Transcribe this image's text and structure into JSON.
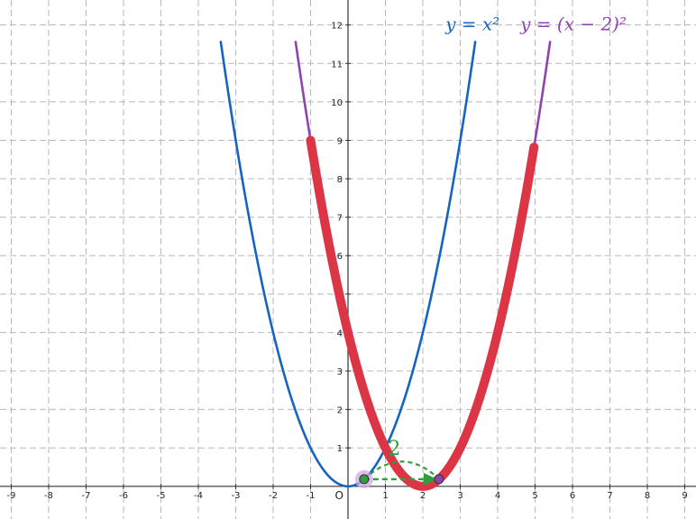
{
  "chart_data": {
    "type": "line",
    "x_ticks": [
      -9,
      -8,
      -7,
      -6,
      -5,
      -4,
      -3,
      -2,
      -1,
      1,
      2,
      3,
      4,
      5,
      6,
      7,
      8,
      9
    ],
    "y_ticks": [
      1,
      2,
      3,
      4,
      5,
      6,
      7,
      8,
      9,
      10,
      11,
      12
    ],
    "origin_label": "O",
    "xlim": [
      -9.3,
      9.3
    ],
    "ylim": [
      -0.85,
      12.65
    ],
    "grid": true,
    "series": [
      {
        "name": "y = x^2",
        "label_text": "y = x²",
        "color": "#1565C0",
        "x_range": [
          -3.4,
          3.4
        ],
        "formula": "x^2"
      },
      {
        "name": "y = (x − 2)^2",
        "label_text": "y = (x − 2)²",
        "color": "#8E44AD",
        "x_range": [
          -1.4,
          5.4
        ],
        "formula": "(x-2)^2"
      },
      {
        "name": "highlight",
        "color": "#DC3545",
        "x_range": [
          -1.0,
          4.97
        ],
        "formula": "(x-2)^2"
      }
    ],
    "points": [
      {
        "name": "point-on-y-equals-x-squared",
        "x": 0.43,
        "y": 0.185,
        "color": "#2E9E3E"
      },
      {
        "name": "point-on-shifted-parabola",
        "x": 2.43,
        "y": 0.185,
        "color": "#8E44AD"
      }
    ],
    "shift_annotation": {
      "text": "2",
      "from_x": 0.43,
      "to_x": 2.43,
      "y": 0.185,
      "color": "#2E9E3E"
    }
  }
}
